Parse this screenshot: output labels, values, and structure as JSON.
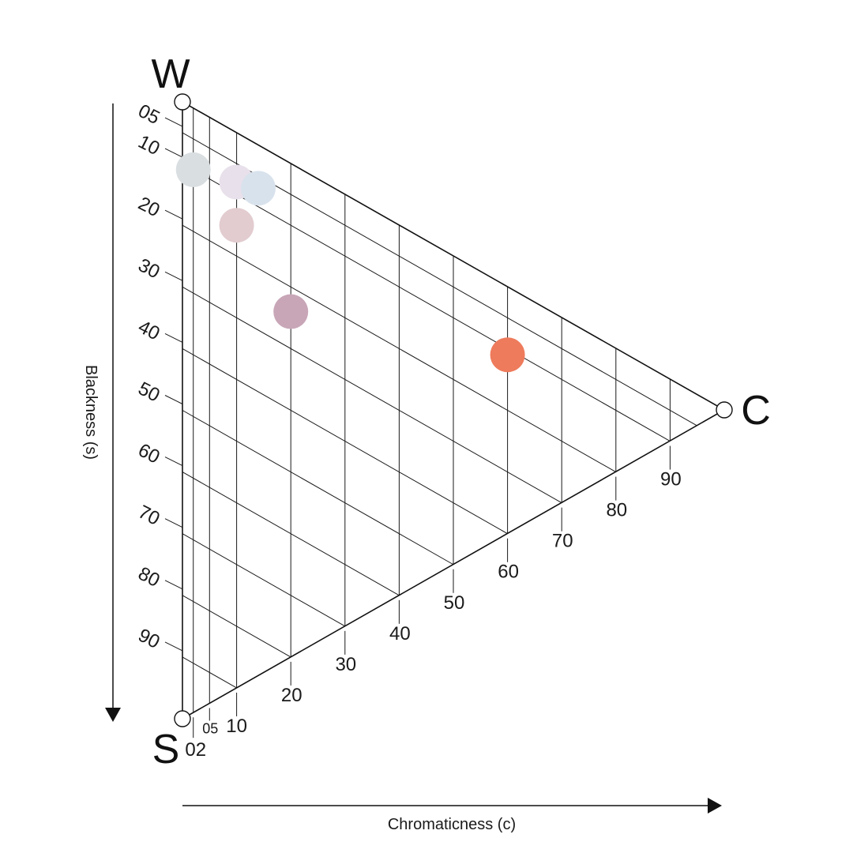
{
  "corners": {
    "white": "W",
    "black": "S",
    "chromatic": "C"
  },
  "blackness_axis": {
    "title": "Blackness (s)",
    "ticks": [
      "05",
      "10",
      "20",
      "30",
      "40",
      "50",
      "60",
      "70",
      "80",
      "90"
    ]
  },
  "chromaticness_axis": {
    "title": "Chromaticness (c)",
    "ticks": [
      "02",
      "05",
      "10",
      "20",
      "30",
      "40",
      "50",
      "60",
      "70",
      "80",
      "90"
    ]
  },
  "samples": [
    {
      "name": "light-gray",
      "s": 10,
      "c": 2,
      "color": "#d9dee1"
    },
    {
      "name": "pale-lavender",
      "s": 8,
      "c": 10,
      "color": "#e8e0ea"
    },
    {
      "name": "pale-blue",
      "s": 7,
      "c": 14,
      "color": "#d8e2ec"
    },
    {
      "name": "pale-pink",
      "s": 15,
      "c": 10,
      "color": "#e2ccd0"
    },
    {
      "name": "mauve",
      "s": 24,
      "c": 20,
      "color": "#c8a6b7"
    },
    {
      "name": "coral",
      "s": 11,
      "c": 60,
      "color": "#ee7b5c"
    }
  ]
}
